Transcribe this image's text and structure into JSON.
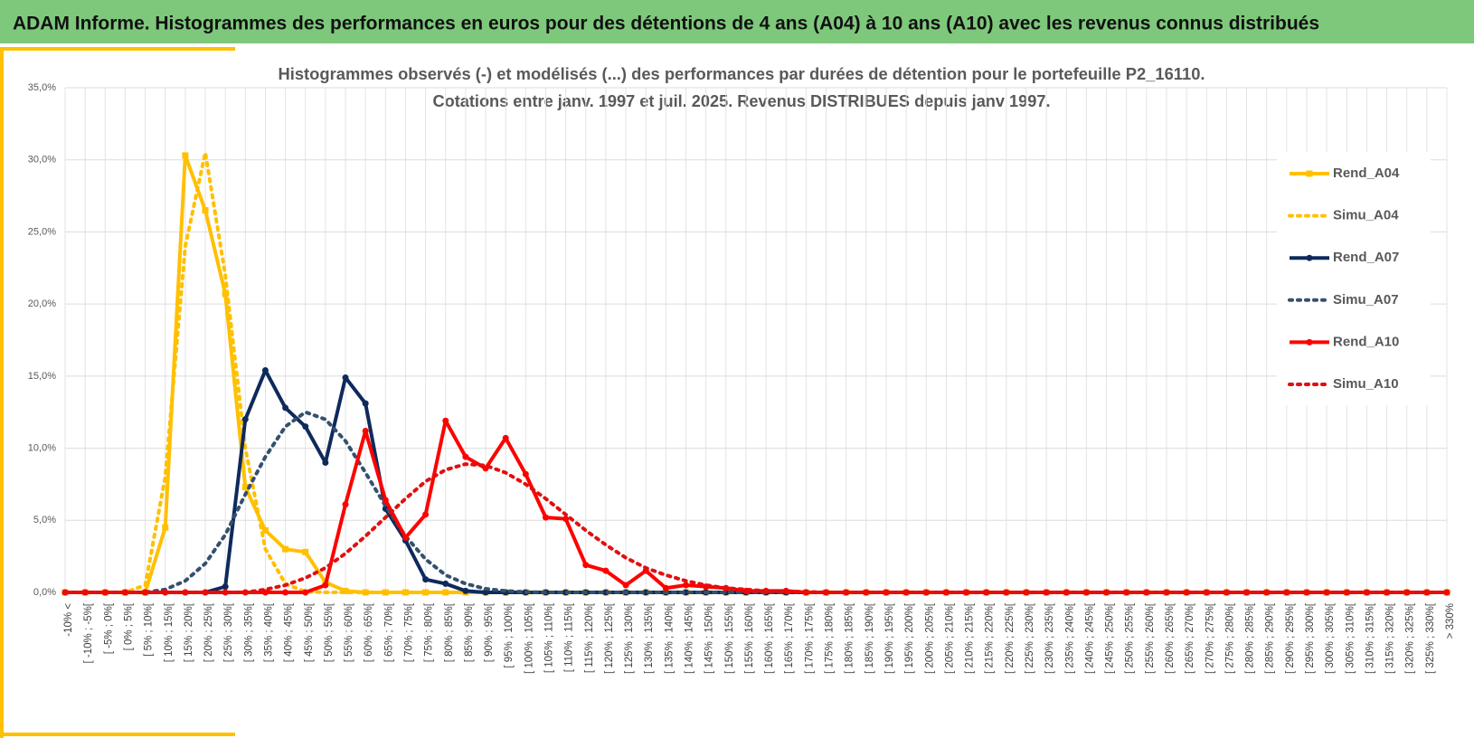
{
  "header": {
    "title": "ADAM Informe. Histogrammes des performances en euros pour des détentions de 4 ans (A04) à 10 ans (A10) avec les revenus connus distribués"
  },
  "chart_data": {
    "type": "line",
    "title": "Histogrammes observés (-) et modélisés (...) des performances par durées de détention pour le portefeuille P2_16110.",
    "subtitle": "Cotations entre janv. 1997 et juil. 2025. Revenus DISTRIBUES depuis janv 1997.",
    "categories": [
      "-10% <",
      "[ -10% ; -5%[",
      "[ -5% ; 0%[",
      "[ 0% ; 5%[",
      "[ 5% ; 10%[",
      "[ 10% ; 15%[",
      "[ 15% ; 20%[",
      "[ 20% ; 25%[",
      "[ 25% ; 30%[",
      "[ 30% ; 35%[",
      "[ 35% ; 40%[",
      "[ 40% ; 45%[",
      "[ 45% ; 50%[",
      "[ 50% ; 55%[",
      "[ 55% ; 60%[",
      "[ 60% ; 65%[",
      "[ 65% ; 70%[",
      "[ 70% ; 75%[",
      "[ 75% ; 80%[",
      "[ 80% ; 85%[",
      "[ 85% ; 90%[",
      "[ 90% ; 95%[",
      "[ 95% ; 100%[",
      "[ 100% ; 105%[",
      "[ 105% ; 110%[",
      "[ 110% ; 115%[",
      "[ 115% ; 120%[",
      "[ 120% ; 125%[",
      "[ 125% ; 130%[",
      "[ 130% ; 135%[",
      "[ 135% ; 140%[",
      "[ 140% ; 145%[",
      "[ 145% ; 150%[",
      "[ 150% ; 155%[",
      "[ 155% ; 160%[",
      "[ 160% ; 165%[",
      "[ 165% ; 170%[",
      "[ 170% ; 175%[",
      "[ 175% ; 180%[",
      "[ 180% ; 185%[",
      "[ 185% ; 190%[",
      "[ 190% ; 195%[",
      "[ 195% ; 200%[",
      "[ 200% ; 205%[",
      "[ 205% ; 210%[",
      "[ 210% ; 215%[",
      "[ 215% ; 220%[",
      "[ 220% ; 225%[",
      "[ 225% ; 230%[",
      "[ 230% ; 235%[",
      "[ 235% ; 240%[",
      "[ 240% ; 245%[",
      "[ 245% ; 250%[",
      "[ 250% ; 255%[",
      "[ 255% ; 260%[",
      "[ 260% ; 265%[",
      "[ 265% ; 270%[",
      "[ 270% ; 275%[",
      "[ 275% ; 280%[",
      "[ 280% ; 285%[",
      "[ 285% ; 290%[",
      "[ 290% ; 295%[",
      "[ 295% ; 300%[",
      "[ 300% ; 305%[",
      "[ 305% ; 310%[",
      "[ 310% ; 315%[",
      "[ 315% ; 320%[",
      "[ 320% ; 325%[",
      "[ 325% ; 330%[",
      "> 330%"
    ],
    "series": [
      {
        "name": "Rend_A04",
        "color": "#ffc000",
        "dash": false,
        "marker": "square",
        "values": [
          0,
          0,
          0,
          0,
          0,
          4.5,
          30.3,
          26.5,
          20.7,
          7.3,
          4.3,
          3.0,
          2.8,
          0.7,
          0.1,
          0,
          0,
          0,
          0,
          0,
          0,
          0,
          0,
          0,
          0,
          0,
          0,
          0,
          0,
          0,
          0,
          0,
          0,
          0,
          0,
          0,
          0,
          0,
          0,
          0,
          0,
          0,
          0,
          0,
          0,
          0,
          0,
          0,
          0,
          0,
          0,
          0,
          0,
          0,
          0,
          0,
          0,
          0,
          0,
          0,
          0,
          0,
          0,
          0,
          0,
          0,
          0,
          0,
          0,
          0
        ]
      },
      {
        "name": "Simu_A04",
        "color": "#ffc000",
        "dash": true,
        "marker": null,
        "values": [
          0,
          0,
          0,
          0,
          0.5,
          8,
          24,
          30.5,
          22,
          10,
          3,
          0.6,
          0.05,
          0,
          0,
          0,
          0,
          0,
          0,
          0,
          0,
          0,
          0,
          0,
          0,
          0,
          0,
          0,
          0,
          0,
          0,
          0,
          0,
          0,
          0,
          0,
          0,
          0,
          0,
          0,
          0,
          0,
          0,
          0,
          0,
          0,
          0,
          0,
          0,
          0,
          0,
          0,
          0,
          0,
          0,
          0,
          0,
          0,
          0,
          0,
          0,
          0,
          0,
          0,
          0,
          0,
          0,
          0,
          0,
          0
        ]
      },
      {
        "name": "Rend_A07",
        "color": "#0e2a5c",
        "dash": false,
        "marker": "circle",
        "values": [
          0,
          0,
          0,
          0,
          0,
          0,
          0,
          0,
          0.4,
          12,
          15.4,
          12.8,
          11.5,
          9.0,
          14.9,
          13.1,
          5.8,
          3.6,
          0.9,
          0.6,
          0.1,
          0,
          0,
          0,
          0,
          0,
          0,
          0,
          0,
          0,
          0,
          0,
          0,
          0,
          0,
          0,
          0,
          0,
          0,
          0,
          0,
          0,
          0,
          0,
          0,
          0,
          0,
          0,
          0,
          0,
          0,
          0,
          0,
          0,
          0,
          0,
          0,
          0,
          0,
          0,
          0,
          0,
          0,
          0,
          0,
          0,
          0,
          0,
          0,
          0
        ]
      },
      {
        "name": "Simu_A07",
        "color": "#34506e",
        "dash": true,
        "marker": null,
        "values": [
          0,
          0,
          0,
          0,
          0,
          0.2,
          0.8,
          2,
          4,
          6.8,
          9.4,
          11.5,
          12.5,
          12,
          10.5,
          8.3,
          6,
          3.9,
          2.3,
          1.2,
          0.6,
          0.25,
          0.1,
          0.03,
          0,
          0,
          0,
          0,
          0,
          0,
          0,
          0,
          0,
          0,
          0,
          0,
          0,
          0,
          0,
          0,
          0,
          0,
          0,
          0,
          0,
          0,
          0,
          0,
          0,
          0,
          0,
          0,
          0,
          0,
          0,
          0,
          0,
          0,
          0,
          0,
          0,
          0,
          0,
          0,
          0,
          0,
          0,
          0,
          0,
          0
        ]
      },
      {
        "name": "Rend_A10",
        "color": "#ff0000",
        "dash": false,
        "marker": "circle",
        "values": [
          0,
          0,
          0,
          0,
          0,
          0,
          0,
          0,
          0,
          0,
          0,
          0,
          0,
          0.5,
          6.1,
          11.2,
          6.4,
          3.8,
          5.4,
          11.9,
          9.4,
          8.6,
          10.7,
          8.2,
          5.2,
          5.1,
          1.9,
          1.5,
          0.5,
          1.5,
          0.3,
          0.5,
          0.4,
          0.3,
          0.1,
          0.1,
          0.1,
          0,
          0,
          0,
          0,
          0,
          0,
          0,
          0,
          0,
          0,
          0,
          0,
          0,
          0,
          0,
          0,
          0,
          0,
          0,
          0,
          0,
          0,
          0,
          0,
          0,
          0,
          0,
          0,
          0,
          0,
          0,
          0,
          0
        ]
      },
      {
        "name": "Simu_A10",
        "color": "#e01010",
        "dash": true,
        "marker": null,
        "values": [
          0,
          0,
          0,
          0,
          0,
          0,
          0,
          0,
          0,
          0,
          0.2,
          0.5,
          1.0,
          1.7,
          2.7,
          3.9,
          5.2,
          6.5,
          7.7,
          8.5,
          8.9,
          8.8,
          8.3,
          7.5,
          6.5,
          5.4,
          4.3,
          3.3,
          2.4,
          1.7,
          1.2,
          0.8,
          0.5,
          0.3,
          0.2,
          0.1,
          0.07,
          0.04,
          0,
          0,
          0,
          0,
          0,
          0,
          0,
          0,
          0,
          0,
          0,
          0,
          0,
          0,
          0,
          0,
          0,
          0,
          0,
          0,
          0,
          0,
          0,
          0,
          0,
          0,
          0,
          0,
          0,
          0,
          0,
          0
        ]
      }
    ],
    "ylim": [
      0,
      35
    ],
    "yticks": [
      {
        "value": 0,
        "label": "0,0%"
      },
      {
        "value": 5,
        "label": "5,0%"
      },
      {
        "value": 10,
        "label": "10,0%"
      },
      {
        "value": 15,
        "label": "15,0%"
      },
      {
        "value": 20,
        "label": "20,0%"
      },
      {
        "value": 25,
        "label": "25,0%"
      },
      {
        "value": 30,
        "label": "30,0%"
      },
      {
        "value": 35,
        "label": "35,0%"
      }
    ],
    "grid": true,
    "legend": "right"
  }
}
